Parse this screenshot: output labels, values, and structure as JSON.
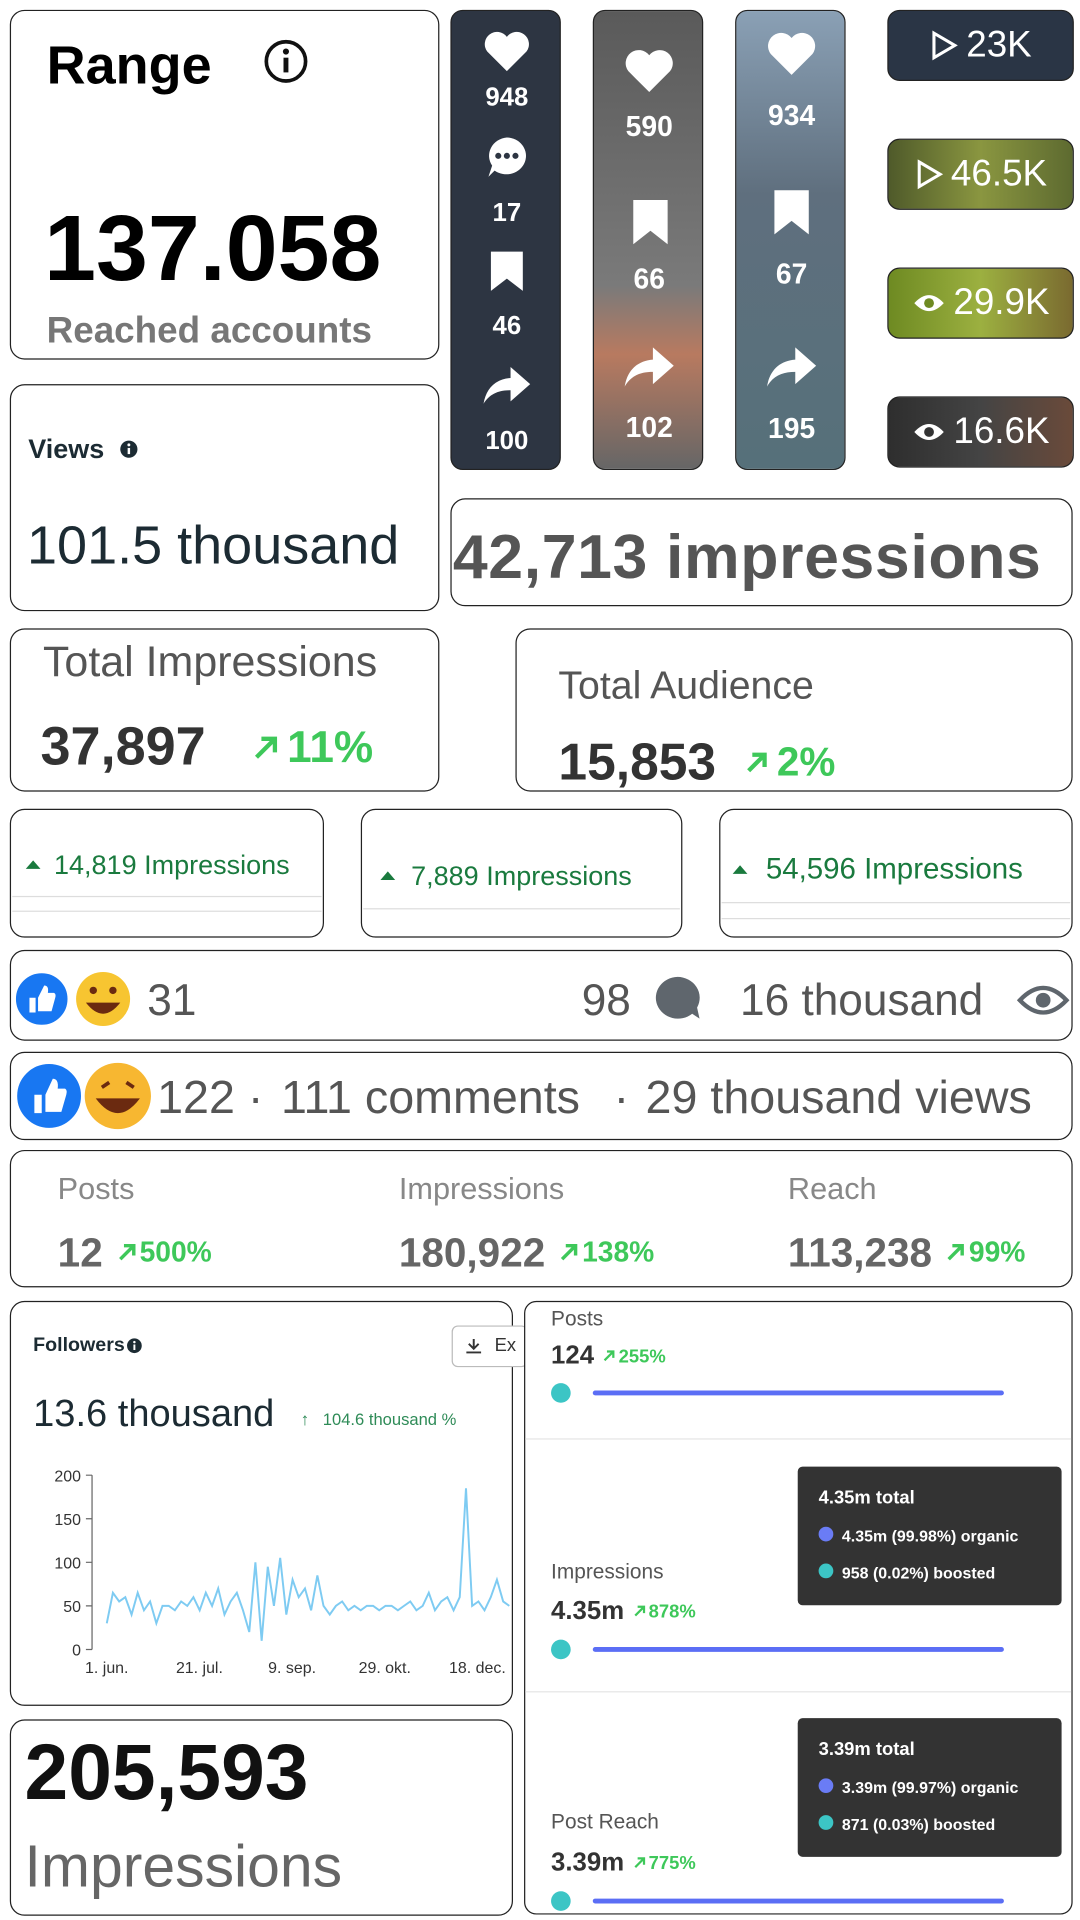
{
  "range_card": {
    "title": "Range",
    "value": "137.058",
    "caption": "Reached accounts"
  },
  "reel_stats": [
    {
      "likes": "948",
      "comments": "17",
      "saves": "46",
      "shares": "100"
    },
    {
      "likes": "590",
      "saves": "66",
      "shares": "102"
    },
    {
      "likes": "934",
      "saves": "67",
      "shares": "195"
    }
  ],
  "play_badges": [
    "23K",
    "46.5K",
    "29.9K",
    "16.6K"
  ],
  "views_card": {
    "title": "Views",
    "value": "101.5 thousand"
  },
  "impressions_banner": "42,713 impressions",
  "total_impressions": {
    "title": "Total Impressions",
    "value": "37,897",
    "change": "11%"
  },
  "total_audience": {
    "title": "Total Audience",
    "value": "15,853",
    "change": "2%"
  },
  "impression_pills": [
    "14,819 Impressions",
    "7,889 Impressions",
    "54,596 Impressions"
  ],
  "fb_row_1": {
    "reactions": "31",
    "comments": "98",
    "views": "16 thousand"
  },
  "fb_row_2": {
    "reactions": "122",
    "separator": "·",
    "comments": "111 comments",
    "views": "29 thousand views"
  },
  "summary": [
    {
      "label": "Posts",
      "value": "12",
      "change": "500%"
    },
    {
      "label": "Impressions",
      "value": "180,922",
      "change": "138%"
    },
    {
      "label": "Reach",
      "value": "113,238",
      "change": "99%"
    }
  ],
  "followers": {
    "title": "Followers",
    "button": "Ex",
    "value": "13.6 thousand",
    "change": "104.6 thousand %",
    "ylim": [
      0,
      200
    ],
    "yticks": [
      0,
      50,
      100,
      150,
      200
    ],
    "x_labels": [
      "1. jun.",
      "21. jul.",
      "9. sep.",
      "29. okt.",
      "18. dec."
    ],
    "values": [
      30,
      65,
      55,
      60,
      40,
      65,
      45,
      55,
      30,
      50,
      50,
      45,
      55,
      50,
      60,
      45,
      65,
      50,
      70,
      40,
      55,
      65,
      45,
      20,
      100,
      10,
      95,
      50,
      105,
      40,
      80,
      60,
      70,
      45,
      85,
      50,
      40,
      50,
      55,
      45,
      50,
      45,
      50,
      50,
      45,
      50,
      50,
      45,
      50,
      55,
      45,
      50,
      65,
      45,
      55,
      60,
      45,
      60,
      185,
      50,
      55,
      45,
      60,
      80,
      55,
      50
    ]
  },
  "big_impressions": {
    "value": "205,593",
    "caption": "Impressions"
  },
  "boost_panel": {
    "posts": {
      "label": "Posts",
      "value": "124",
      "change": "255%"
    },
    "impressions": {
      "label": "Impressions",
      "value": "4.35m",
      "change": "878%",
      "tooltip": {
        "total": "4.35m total",
        "organic": "4.35m (99.98%) organic",
        "boosted": "958 (0.02%) boosted"
      }
    },
    "reach": {
      "label": "Post Reach",
      "value": "3.39m",
      "change": "775%",
      "tooltip": {
        "total": "3.39m total",
        "organic": "3.39m (99.97%) organic",
        "boosted": "871 (0.03%) boosted"
      }
    }
  }
}
